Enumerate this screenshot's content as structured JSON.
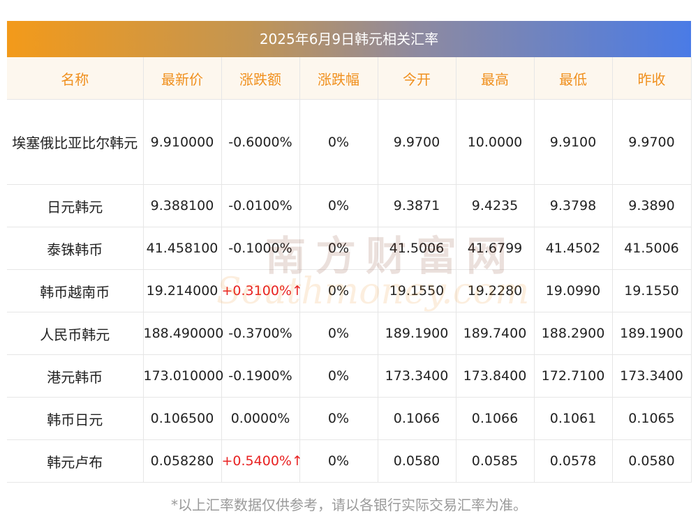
{
  "title": "2025年6月9日韩元相关汇率",
  "columns": [
    "名称",
    "最新价",
    "涨跌额",
    "涨跌幅",
    "今开",
    "最高",
    "最低",
    "昨收"
  ],
  "rows": [
    {
      "name": "埃塞俄比亚比尔韩元",
      "latest": "9.910000",
      "change": "-0.6000%",
      "pct": "0%",
      "open": "9.9700",
      "high": "10.0000",
      "low": "9.9100",
      "prev": "9.9700"
    },
    {
      "name": "日元韩元",
      "latest": "9.388100",
      "change": "-0.0100%",
      "pct": "0%",
      "open": "9.3871",
      "high": "9.4235",
      "low": "9.3798",
      "prev": "9.3890"
    },
    {
      "name": "泰铢韩币",
      "latest": "41.458100",
      "change": "-0.1000%",
      "pct": "0%",
      "open": "41.5006",
      "high": "41.6799",
      "low": "41.4502",
      "prev": "41.5006"
    },
    {
      "name": "韩币越南币",
      "latest": "19.214000",
      "change": "+0.3100%↑",
      "pct": "0%",
      "open": "19.1550",
      "high": "19.2280",
      "low": "19.0990",
      "prev": "19.1550"
    },
    {
      "name": "人民币韩元",
      "latest": "188.490000",
      "change": "-0.3700%",
      "pct": "0%",
      "open": "189.1900",
      "high": "189.7400",
      "low": "188.2900",
      "prev": "189.1900"
    },
    {
      "name": "港元韩币",
      "latest": "173.010000",
      "change": "-0.1900%",
      "pct": "0%",
      "open": "173.3400",
      "high": "173.8400",
      "low": "172.7100",
      "prev": "173.3400"
    },
    {
      "name": "韩币日元",
      "latest": "0.106500",
      "change": "0.0000%",
      "pct": "0%",
      "open": "0.1066",
      "high": "0.1066",
      "low": "0.1061",
      "prev": "0.1065"
    },
    {
      "name": "韩元卢布",
      "latest": "0.058280",
      "change": "+0.5400%↑",
      "pct": "0%",
      "open": "0.0580",
      "high": "0.0585",
      "low": "0.0578",
      "prev": "0.0580"
    }
  ],
  "watermark": {
    "cn": "南方财富网",
    "en": "Southmoney.com"
  },
  "footer": "*以上汇率数据仅供参考，请以各银行实际交易汇率为准。",
  "colors": {
    "header_text": "#f0901e",
    "up": "#e82222",
    "title_start": "#f39a1a",
    "title_end": "#4a7be6"
  }
}
